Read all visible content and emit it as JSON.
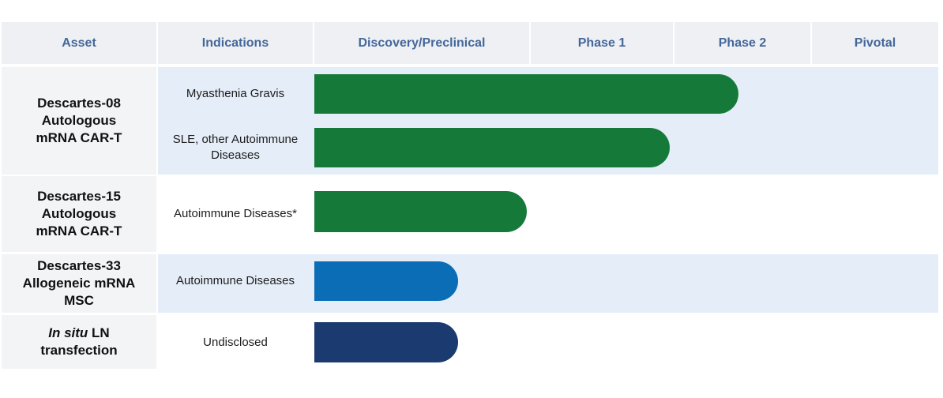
{
  "headers": {
    "asset": "Asset",
    "indications": "Indications",
    "discovery": "Discovery/Preclinical",
    "phase1": "Phase 1",
    "phase2": "Phase 2",
    "pivotal": "Pivotal"
  },
  "programs": [
    {
      "asset_lines": [
        "Descartes-08",
        "Autologous",
        "mRNA CAR-T"
      ],
      "indications": [
        {
          "label": "Myasthenia Gravis",
          "stage": "Phase 2",
          "progress": 0.68,
          "color": "#157a39"
        },
        {
          "label": "SLE, other Autoimmune Diseases",
          "stage": "Phase 2",
          "progress": 0.57,
          "color": "#157a39"
        }
      ]
    },
    {
      "asset_lines": [
        "Descartes-15",
        "Autologous",
        "mRNA CAR-T"
      ],
      "indications": [
        {
          "label": "Autoimmune Diseases*",
          "stage": "Phase 1",
          "progress": 0.34,
          "color": "#157a39"
        }
      ]
    },
    {
      "asset_lines": [
        "Descartes-33",
        "Allogeneic mRNA",
        "MSC"
      ],
      "indications": [
        {
          "label": "Autoimmune Diseases",
          "stage": "Discovery/Preclinical",
          "progress": 0.23,
          "color": "#0a6db6"
        }
      ]
    },
    {
      "asset_italic": "In situ",
      "asset_lines": [
        " LN",
        "transfection"
      ],
      "indications": [
        {
          "label": "Undisclosed",
          "stage": "Discovery/Preclinical",
          "progress": 0.23,
          "color": "#1b3a6f"
        }
      ]
    }
  ],
  "colors": {
    "header_text": "#44679a",
    "header_bg": "#eef0f3",
    "band_bg": "#e5edf8",
    "green": "#157a39",
    "blue": "#0a6db6",
    "navy": "#1b3a6f"
  }
}
